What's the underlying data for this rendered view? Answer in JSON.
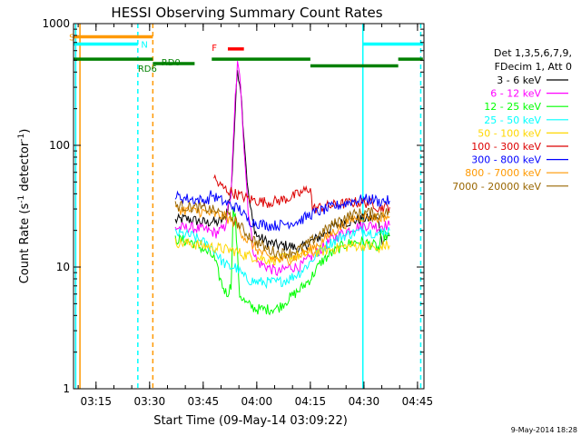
{
  "chart_data": {
    "type": "line",
    "title": "HESSI Observing Summary Count Rates",
    "xlabel": "Start Time (09-May-14 03:09:22)",
    "ylabel_main": "Count Rate (s",
    "ylabel_sup1": "-1",
    "ylabel_mid": " detector",
    "ylabel_sup2": "-1",
    "ylabel_end": ")",
    "y_scale": "log",
    "xlim": [
      3.145,
      4.78
    ],
    "ylim": [
      1,
      1000
    ],
    "x_ticks": [
      {
        "value": 3.25,
        "label": "03:15"
      },
      {
        "value": 3.5,
        "label": "03:30"
      },
      {
        "value": 3.75,
        "label": "03:45"
      },
      {
        "value": 4.0,
        "label": "04:00"
      },
      {
        "value": 4.25,
        "label": "04:15"
      },
      {
        "value": 4.5,
        "label": "04:30"
      },
      {
        "value": 4.75,
        "label": "04:45"
      }
    ],
    "y_ticks": [
      {
        "value": 1,
        "label": "1"
      },
      {
        "value": 10,
        "label": "10"
      },
      {
        "value": 100,
        "label": "100"
      },
      {
        "value": 1000,
        "label": "1000"
      }
    ],
    "legend_header": [
      "Det 1,3,5,6,7,9,",
      "FDecim 1, Att 0"
    ],
    "legend_position": "right",
    "series": [
      {
        "name": "3 - 6 keV",
        "color": "#000000",
        "points": [
          [
            3.62,
            24
          ],
          [
            3.66,
            25
          ],
          [
            3.72,
            24
          ],
          [
            3.77,
            23
          ],
          [
            3.79,
            24
          ],
          [
            3.81,
            23
          ],
          [
            3.85,
            25
          ],
          [
            3.88,
            40
          ],
          [
            3.9,
            200
          ],
          [
            3.91,
            420
          ],
          [
            3.925,
            300
          ],
          [
            3.94,
            120
          ],
          [
            3.96,
            40
          ],
          [
            3.98,
            24
          ],
          [
            4.0,
            18
          ],
          [
            4.05,
            16
          ],
          [
            4.1,
            15
          ],
          [
            4.15,
            15
          ],
          [
            4.2,
            14
          ],
          [
            4.25,
            16
          ],
          [
            4.3,
            18
          ],
          [
            4.35,
            21
          ],
          [
            4.4,
            23
          ],
          [
            4.45,
            24
          ],
          [
            4.5,
            25
          ],
          [
            4.55,
            25
          ],
          [
            4.57,
            24
          ],
          [
            4.58,
            17
          ],
          [
            4.6,
            17
          ],
          [
            4.62,
            18
          ]
        ]
      },
      {
        "name": "6 - 12 keV",
        "color": "#ff00ff",
        "points": [
          [
            3.62,
            21
          ],
          [
            3.7,
            21
          ],
          [
            3.77,
            20
          ],
          [
            3.81,
            19
          ],
          [
            3.85,
            21
          ],
          [
            3.88,
            40
          ],
          [
            3.9,
            250
          ],
          [
            3.91,
            460
          ],
          [
            3.925,
            320
          ],
          [
            3.94,
            100
          ],
          [
            3.96,
            30
          ],
          [
            3.98,
            15
          ],
          [
            4.0,
            11
          ],
          [
            4.05,
            10
          ],
          [
            4.1,
            9
          ],
          [
            4.15,
            10
          ],
          [
            4.2,
            10
          ],
          [
            4.25,
            12
          ],
          [
            4.3,
            14
          ],
          [
            4.35,
            17
          ],
          [
            4.4,
            19
          ],
          [
            4.45,
            21
          ],
          [
            4.5,
            22
          ],
          [
            4.55,
            22
          ],
          [
            4.57,
            21
          ],
          [
            4.58,
            22
          ],
          [
            4.6,
            22
          ],
          [
            4.62,
            22
          ]
        ]
      },
      {
        "name": "12 - 25 keV",
        "color": "#00ff00",
        "points": [
          [
            3.62,
            17
          ],
          [
            3.7,
            16
          ],
          [
            3.75,
            14
          ],
          [
            3.8,
            12
          ],
          [
            3.82,
            9
          ],
          [
            3.84,
            7
          ],
          [
            3.86,
            6
          ],
          [
            3.88,
            7
          ],
          [
            3.89,
            30
          ],
          [
            3.9,
            25
          ],
          [
            3.92,
            6
          ],
          [
            3.95,
            5
          ],
          [
            4.0,
            4.5
          ],
          [
            4.05,
            4.5
          ],
          [
            4.1,
            4.6
          ],
          [
            4.15,
            5.5
          ],
          [
            4.2,
            6.5
          ],
          [
            4.25,
            8
          ],
          [
            4.3,
            11
          ],
          [
            4.35,
            13
          ],
          [
            4.4,
            15
          ],
          [
            4.45,
            16
          ],
          [
            4.5,
            16
          ],
          [
            4.55,
            15
          ],
          [
            4.57,
            14
          ],
          [
            4.58,
            18
          ],
          [
            4.6,
            18
          ],
          [
            4.62,
            18
          ]
        ]
      },
      {
        "name": "25 - 50 keV",
        "color": "#00ffff",
        "points": [
          [
            3.62,
            19
          ],
          [
            3.7,
            18
          ],
          [
            3.75,
            16
          ],
          [
            3.8,
            14
          ],
          [
            3.84,
            11
          ],
          [
            3.87,
            10
          ],
          [
            3.9,
            10
          ],
          [
            3.95,
            8
          ],
          [
            4.0,
            7.5
          ],
          [
            4.05,
            7.5
          ],
          [
            4.1,
            7.5
          ],
          [
            4.15,
            8
          ],
          [
            4.2,
            9
          ],
          [
            4.25,
            11
          ],
          [
            4.3,
            14
          ],
          [
            4.35,
            16
          ],
          [
            4.4,
            18
          ],
          [
            4.45,
            19
          ],
          [
            4.5,
            20
          ],
          [
            4.55,
            19
          ],
          [
            4.57,
            18
          ],
          [
            4.58,
            20
          ],
          [
            4.6,
            20
          ],
          [
            4.62,
            20
          ]
        ]
      },
      {
        "name": "50 - 100 keV",
        "color": "#ffd700",
        "points": [
          [
            3.62,
            16
          ],
          [
            3.7,
            15.5
          ],
          [
            3.75,
            15
          ],
          [
            3.8,
            14.5
          ],
          [
            3.85,
            14
          ],
          [
            3.9,
            13.5
          ],
          [
            3.95,
            12.5
          ],
          [
            4.0,
            12
          ],
          [
            4.05,
            11.5
          ],
          [
            4.1,
            11.5
          ],
          [
            4.15,
            12
          ],
          [
            4.2,
            12.5
          ],
          [
            4.25,
            13
          ],
          [
            4.3,
            13.5
          ],
          [
            4.35,
            14
          ],
          [
            4.4,
            14.5
          ],
          [
            4.45,
            15
          ],
          [
            4.5,
            15
          ],
          [
            4.55,
            14.5
          ],
          [
            4.57,
            13
          ],
          [
            4.58,
            15
          ],
          [
            4.6,
            15
          ],
          [
            4.62,
            15
          ]
        ]
      },
      {
        "name": "100 - 300 keV",
        "color": "#dd0000",
        "points": [
          [
            3.8,
            55
          ],
          [
            3.82,
            48
          ],
          [
            3.85,
            44
          ],
          [
            3.9,
            40
          ],
          [
            3.95,
            37
          ],
          [
            4.0,
            35
          ],
          [
            4.05,
            34
          ],
          [
            4.1,
            35
          ],
          [
            4.15,
            37
          ],
          [
            4.2,
            40
          ],
          [
            4.25,
            45
          ],
          [
            4.26,
            30
          ],
          [
            4.3,
            31
          ],
          [
            4.35,
            32
          ],
          [
            4.4,
            33
          ],
          [
            4.45,
            34
          ],
          [
            4.5,
            34
          ],
          [
            4.55,
            33
          ],
          [
            4.57,
            30
          ],
          [
            4.58,
            31
          ],
          [
            4.6,
            31
          ],
          [
            4.62,
            31
          ]
        ]
      },
      {
        "name": "300 - 800 keV",
        "color": "#0000ff",
        "points": [
          [
            3.62,
            38
          ],
          [
            3.66,
            37
          ],
          [
            3.7,
            36
          ],
          [
            3.77,
            35
          ],
          [
            3.79,
            40
          ],
          [
            3.8,
            38
          ],
          [
            3.85,
            34
          ],
          [
            3.88,
            32
          ],
          [
            3.92,
            30
          ],
          [
            3.96,
            24
          ],
          [
            4.0,
            23
          ],
          [
            4.05,
            22
          ],
          [
            4.1,
            22
          ],
          [
            4.15,
            23
          ],
          [
            4.2,
            24
          ],
          [
            4.25,
            27
          ],
          [
            4.3,
            29
          ],
          [
            4.35,
            31
          ],
          [
            4.4,
            33
          ],
          [
            4.45,
            35
          ],
          [
            4.5,
            36
          ],
          [
            4.55,
            36
          ],
          [
            4.57,
            34
          ],
          [
            4.58,
            35
          ],
          [
            4.6,
            35
          ],
          [
            4.62,
            35
          ]
        ]
      },
      {
        "name": "800 - 7000 keV",
        "color": "#ff9900",
        "points": [
          [
            3.62,
            30
          ],
          [
            3.7,
            29
          ],
          [
            3.77,
            28
          ],
          [
            3.8,
            27
          ],
          [
            3.85,
            26
          ],
          [
            3.9,
            23
          ],
          [
            3.95,
            17
          ],
          [
            4.0,
            14
          ],
          [
            4.05,
            12
          ],
          [
            4.1,
            11.5
          ],
          [
            4.15,
            11.5
          ],
          [
            4.2,
            12.5
          ],
          [
            4.25,
            14
          ],
          [
            4.3,
            16
          ],
          [
            4.35,
            19
          ],
          [
            4.4,
            22
          ],
          [
            4.45,
            25
          ],
          [
            4.5,
            26
          ],
          [
            4.55,
            26
          ],
          [
            4.57,
            24
          ],
          [
            4.58,
            26
          ],
          [
            4.6,
            26
          ],
          [
            4.62,
            26
          ]
        ]
      },
      {
        "name": "7000 - 20000 keV",
        "color": "#996600",
        "points": [
          [
            3.62,
            32
          ],
          [
            3.7,
            31
          ],
          [
            3.77,
            30
          ],
          [
            3.8,
            29
          ],
          [
            3.85,
            27
          ],
          [
            3.9,
            24
          ],
          [
            3.95,
            19
          ],
          [
            4.0,
            16
          ],
          [
            4.05,
            14
          ],
          [
            4.1,
            13
          ],
          [
            4.15,
            13
          ],
          [
            4.2,
            14
          ],
          [
            4.25,
            16
          ],
          [
            4.3,
            19
          ],
          [
            4.35,
            22
          ],
          [
            4.4,
            25
          ],
          [
            4.45,
            27
          ],
          [
            4.5,
            28
          ],
          [
            4.55,
            28
          ],
          [
            4.57,
            26
          ],
          [
            4.58,
            28
          ],
          [
            4.6,
            28
          ],
          [
            4.62,
            28
          ]
        ]
      }
    ],
    "annotation_bars": [
      {
        "label": "S",
        "color": "#ff9900",
        "x_start": 3.145,
        "x_end": 3.515,
        "y": 780,
        "label_x": 3.15,
        "label_side": "left"
      },
      {
        "label": "N",
        "color": "#00ffff",
        "x_start": 3.145,
        "x_end": 3.445,
        "y": 680,
        "label_x": 3.46,
        "label_side": "right"
      },
      {
        "label": "",
        "color": "#00ffff",
        "x_start": 4.495,
        "x_end": 4.775,
        "y": 680,
        "label_x": 4.5,
        "label_side": "none"
      },
      {
        "label": "F",
        "color": "#ff0000",
        "x_start": 3.865,
        "x_end": 3.94,
        "y": 620,
        "label_x": 3.84,
        "label_side": "left"
      },
      {
        "label": "RD0",
        "color": "#008000",
        "x_start": 3.515,
        "x_end": 3.71,
        "y": 470,
        "label_x": 3.555,
        "label_side": "below"
      },
      {
        "label": "RD6",
        "color": "#008000",
        "x_start": 3.145,
        "x_end": 3.515,
        "y": 510,
        "label_x": 3.445,
        "label_side": "below"
      },
      {
        "label": "",
        "color": "#008000",
        "x_start": 3.79,
        "x_end": 4.25,
        "y": 510,
        "label_x": 0,
        "label_side": "none"
      },
      {
        "label": "",
        "color": "#008000",
        "x_start": 4.25,
        "x_end": 4.66,
        "y": 450,
        "label_x": 0,
        "label_side": "none"
      },
      {
        "label": "",
        "color": "#008000",
        "x_start": 4.66,
        "x_end": 4.775,
        "y": 510,
        "label_x": 0,
        "label_side": "none"
      }
    ],
    "vertical_lines": [
      {
        "x": 3.155,
        "color": "#00ffff",
        "dashed": false
      },
      {
        "x": 3.175,
        "color": "#ff9900",
        "dashed": false
      },
      {
        "x": 3.445,
        "color": "#00ffff",
        "dashed": true
      },
      {
        "x": 3.515,
        "color": "#ff9900",
        "dashed": true
      },
      {
        "x": 4.495,
        "color": "#00ffff",
        "dashed": false
      },
      {
        "x": 4.765,
        "color": "#00ffff",
        "dashed": true
      }
    ],
    "footer_timestamp": "9-May-2014 18:28"
  }
}
